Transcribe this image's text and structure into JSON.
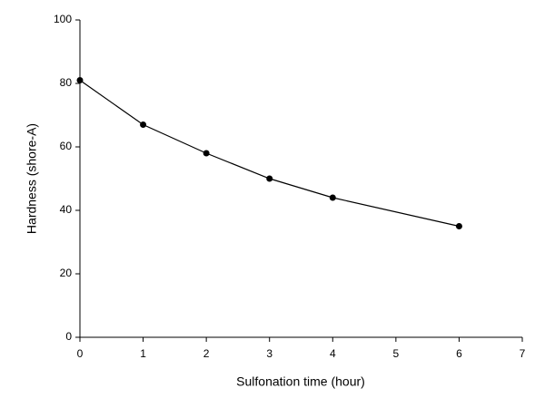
{
  "chart_data": {
    "type": "line",
    "x_label": "Sulfonation time (hour)",
    "y_label": "Hardness (shore-A)",
    "x": [
      0,
      1,
      2,
      3,
      4,
      6
    ],
    "series": [
      {
        "color": "#000000",
        "values": [
          81,
          67,
          58,
          50,
          44,
          35
        ]
      }
    ],
    "xlim": [
      0,
      7
    ],
    "xticks": [
      0,
      1,
      2,
      3,
      4,
      5,
      6,
      7
    ],
    "ylim": [
      0,
      100
    ],
    "yticks": [
      0,
      20,
      40,
      60,
      80,
      100
    ],
    "grid": false
  }
}
